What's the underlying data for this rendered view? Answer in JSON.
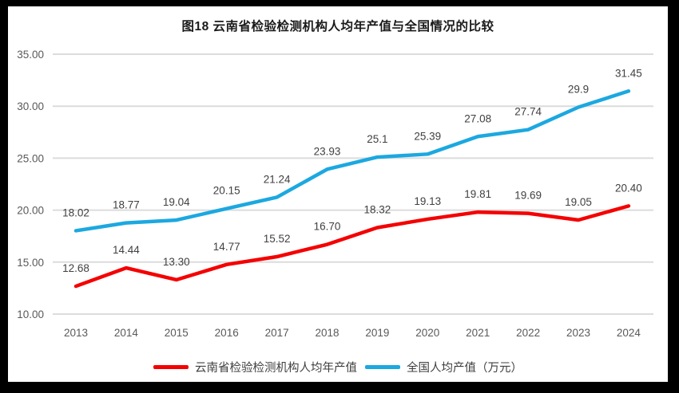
{
  "chart_data": {
    "type": "line",
    "title": "图18  云南省检验检测机构人均年产值与全国情况的比较",
    "categories": [
      "2013",
      "2014",
      "2015",
      "2016",
      "2017",
      "2018",
      "2019",
      "2020",
      "2021",
      "2022",
      "2023",
      "2024"
    ],
    "y_ticks": [
      "35.00",
      "30.00",
      "25.00",
      "20.00",
      "15.00",
      "10.00"
    ],
    "ylim": [
      10,
      35
    ],
    "grid": "horizontal-only",
    "legend_position": "bottom",
    "series": [
      {
        "name": "云南省检验检测机构人均年产值",
        "color": "#f50000",
        "values": [
          12.68,
          14.44,
          13.3,
          14.77,
          15.52,
          16.7,
          18.32,
          19.13,
          19.81,
          19.69,
          19.05,
          20.4
        ],
        "labels": [
          "12.68",
          "14.44",
          "13.30",
          "14.77",
          "15.52",
          "16.70",
          "18.32",
          "19.13",
          "19.81",
          "19.69",
          "19.05",
          "20.40"
        ]
      },
      {
        "name": "全国人均产值（万元）",
        "color": "#1ca8e0",
        "values": [
          18.02,
          18.77,
          19.04,
          20.15,
          21.24,
          23.93,
          25.1,
          25.39,
          27.08,
          27.74,
          29.9,
          31.45
        ],
        "labels": [
          "18.02",
          "18.77",
          "19.04",
          "20.15",
          "21.24",
          "23.93",
          "25.1",
          "25.39",
          "27.08",
          "27.74",
          "29.9",
          "31.45"
        ]
      }
    ],
    "colors": {
      "grid": "#dcdcdc",
      "axis_text": "#595959",
      "label_text": "#404040",
      "title_text": "#1a1a1a",
      "background": "#ffffff",
      "frame": "#000000"
    }
  }
}
